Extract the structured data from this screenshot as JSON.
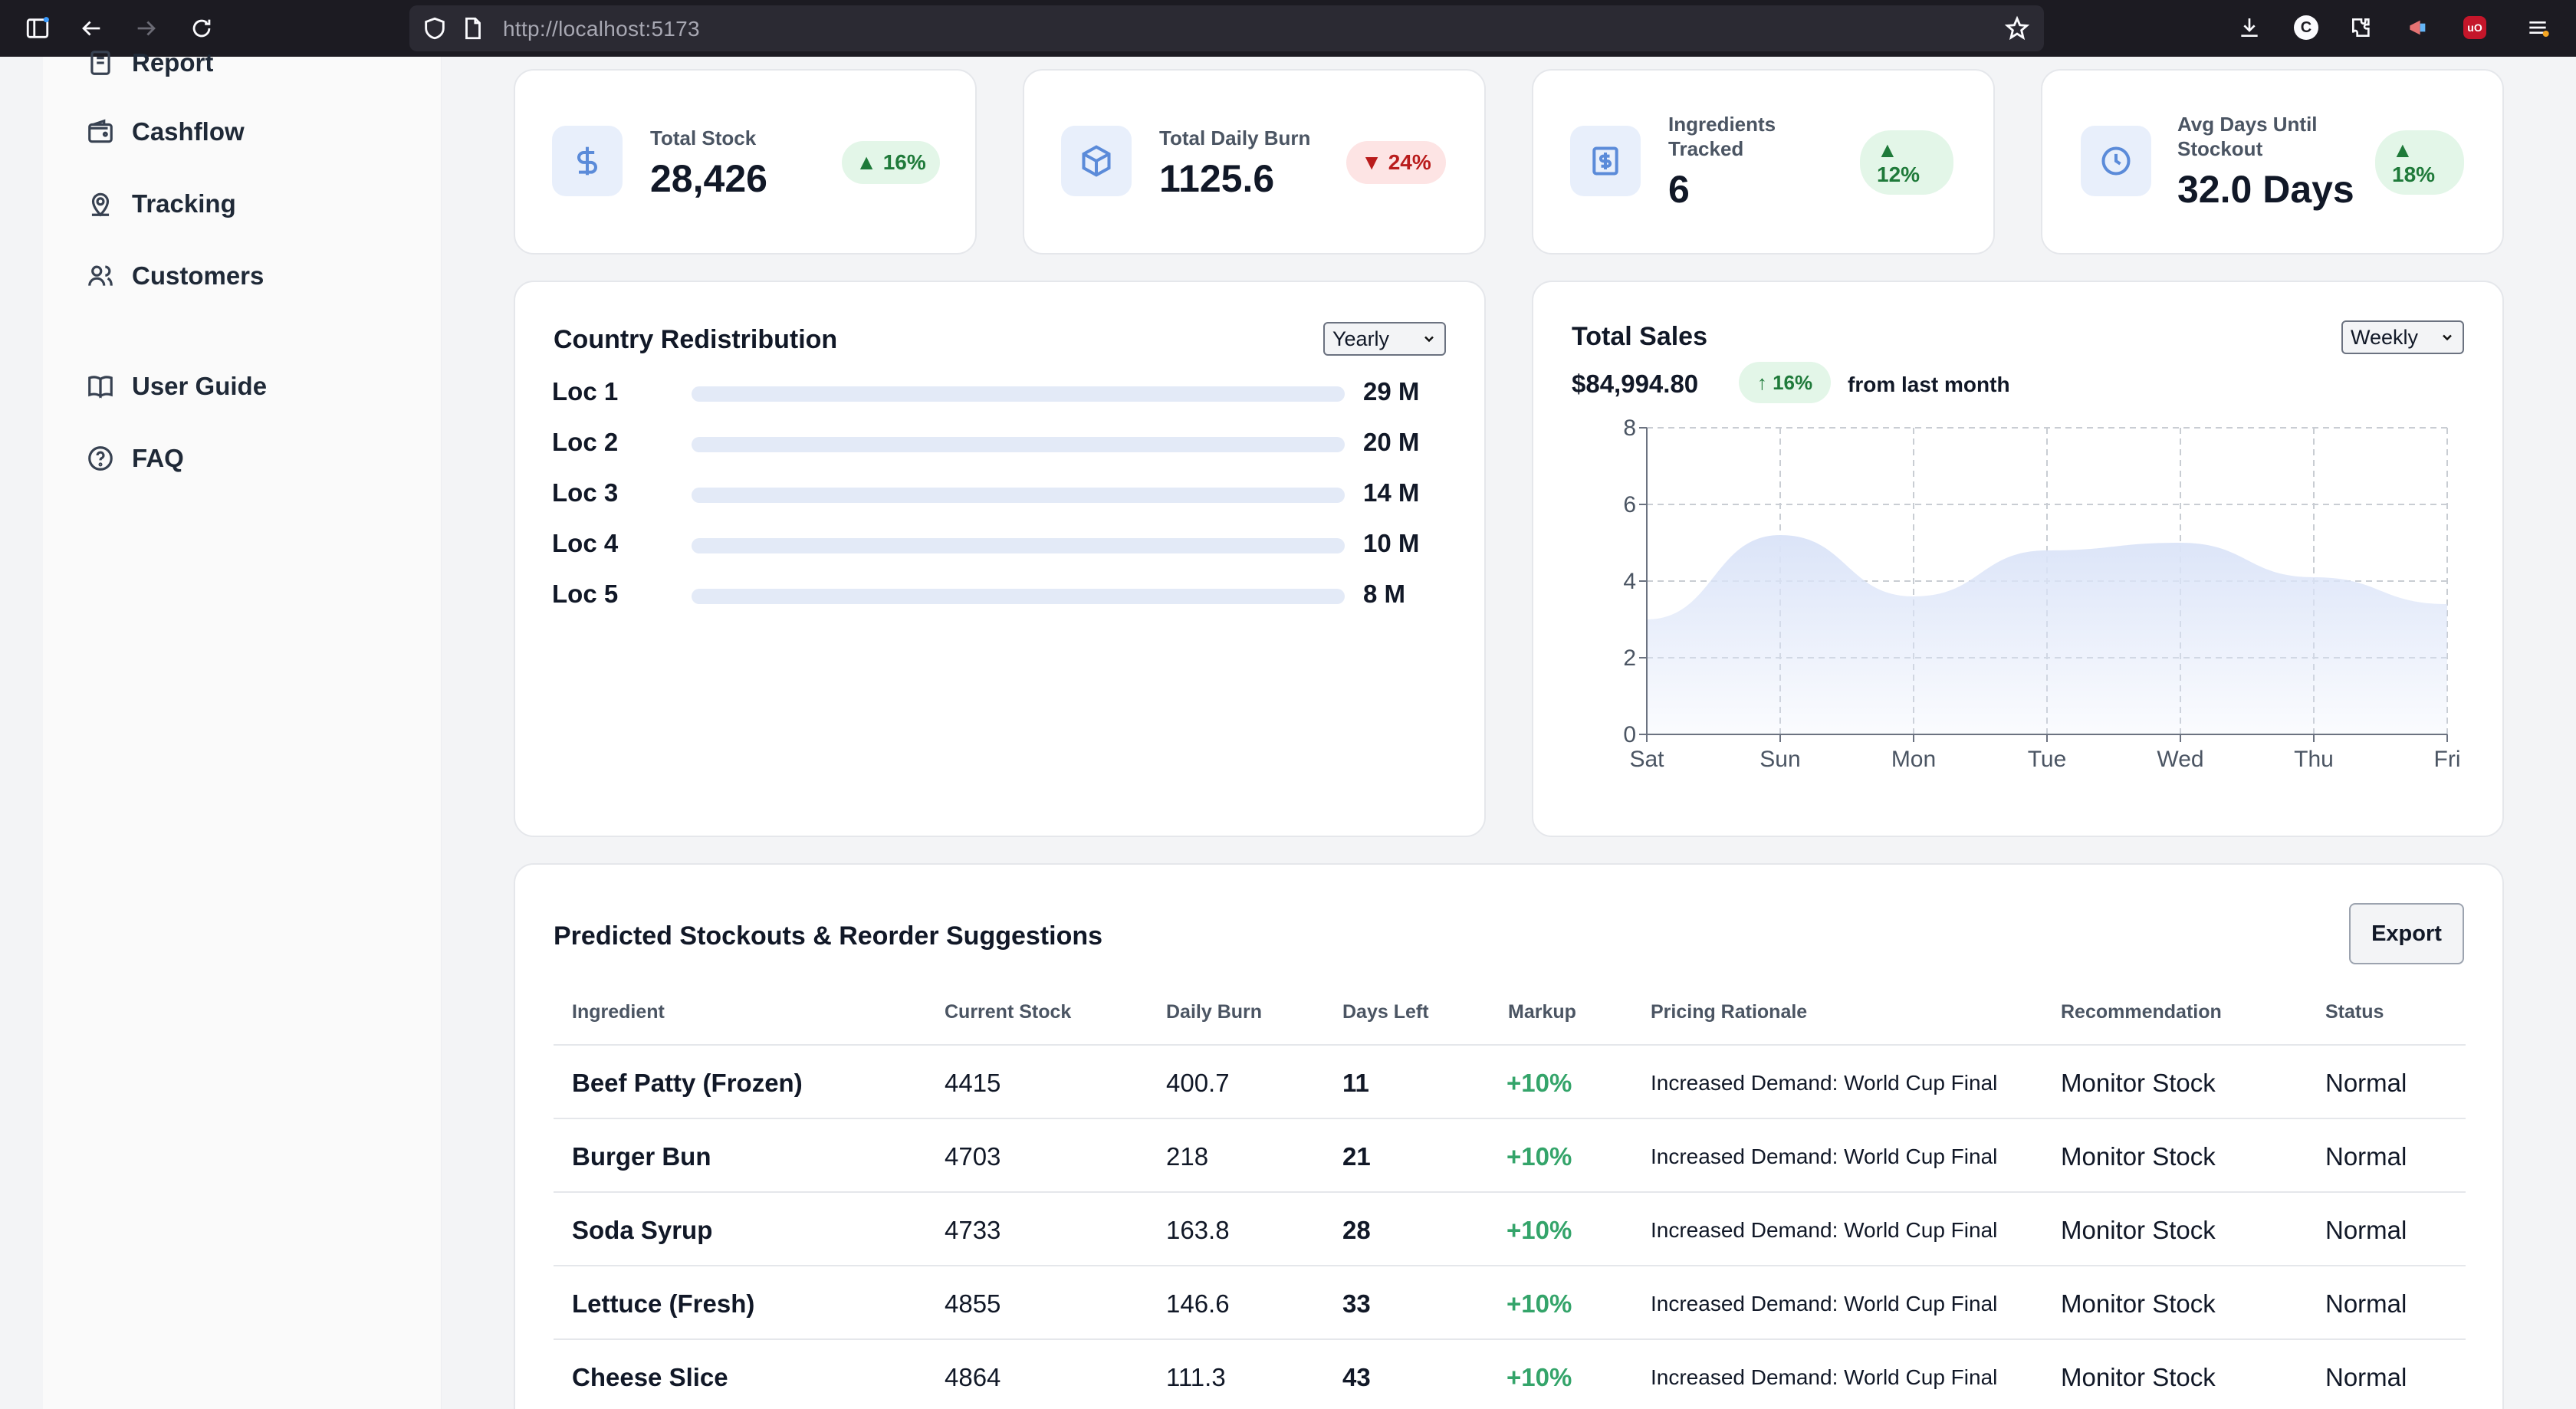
{
  "browser": {
    "url_host": "http://localhost",
    "url_port": ":5173"
  },
  "sidebar": {
    "items": [
      {
        "label": "Report",
        "icon": "report-icon"
      },
      {
        "label": "Cashflow",
        "icon": "wallet-icon"
      },
      {
        "label": "Tracking",
        "icon": "location-pin-icon"
      },
      {
        "label": "Customers",
        "icon": "users-icon"
      },
      {
        "label": "User Guide",
        "icon": "book-icon"
      },
      {
        "label": "FAQ",
        "icon": "question-circle-icon"
      }
    ]
  },
  "stats": [
    {
      "label": "Total Stock",
      "value": "28,426",
      "change": "▲ 16%",
      "direction": "up",
      "icon": "dollar-icon"
    },
    {
      "label": "Total Daily Burn",
      "value": "1125.6",
      "change": "▼ 24%",
      "direction": "down",
      "icon": "box-icon"
    },
    {
      "label_line1": "Ingredients",
      "label_line2": "Tracked",
      "value": "6",
      "change_arrow": "▲",
      "change_value": "12%",
      "direction": "up",
      "icon": "receipt-icon"
    },
    {
      "label_line1": "Avg Days Until",
      "label_line2": "Stockout",
      "value": "32.0 Days",
      "change_arrow": "▲",
      "change_value": "18%",
      "direction": "up",
      "icon": "clock-icon"
    }
  ],
  "country_redistribution": {
    "title": "Country Redistribution",
    "period": "Yearly",
    "rows": [
      {
        "name": "Loc 1",
        "value": "29 M"
      },
      {
        "name": "Loc 2",
        "value": "20 M"
      },
      {
        "name": "Loc 3",
        "value": "14 M"
      },
      {
        "name": "Loc 4",
        "value": "10 M"
      },
      {
        "name": "Loc 5",
        "value": "8 M"
      }
    ]
  },
  "total_sales": {
    "title": "Total Sales",
    "period": "Weekly",
    "amount": "$84,994.80",
    "change": "↑ 16%",
    "change_note": "from last month"
  },
  "chart_data": {
    "type": "area",
    "x": [
      "Sat",
      "Sun",
      "Mon",
      "Tue",
      "Wed",
      "Thu",
      "Fri"
    ],
    "series": [
      {
        "values": [
          3.0,
          5.2,
          3.6,
          4.8,
          5.0,
          4.1,
          3.4
        ]
      }
    ],
    "ylim": [
      0,
      8
    ],
    "yticks": [
      "0",
      "2",
      "4",
      "6",
      "8"
    ],
    "grid": true,
    "fill_color": "#dbe4f8"
  },
  "stockouts": {
    "title": "Predicted Stockouts & Reorder Suggestions",
    "export_label": "Export",
    "columns": [
      "Ingredient",
      "Current Stock",
      "Daily Burn",
      "Days Left",
      "Markup",
      "Pricing Rationale",
      "Recommendation",
      "Status"
    ],
    "rows": [
      {
        "ingredient": "Beef Patty (Frozen)",
        "stock": "4415",
        "burn": "400.7",
        "days": "11",
        "markup": "+10%",
        "rationale": "Increased Demand: World Cup Final",
        "recommendation": "Monitor Stock",
        "status": "Normal"
      },
      {
        "ingredient": "Burger Bun",
        "stock": "4703",
        "burn": "218",
        "days": "21",
        "markup": "+10%",
        "rationale": "Increased Demand: World Cup Final",
        "recommendation": "Monitor Stock",
        "status": "Normal"
      },
      {
        "ingredient": "Soda Syrup",
        "stock": "4733",
        "burn": "163.8",
        "days": "28",
        "markup": "+10%",
        "rationale": "Increased Demand: World Cup Final",
        "recommendation": "Monitor Stock",
        "status": "Normal"
      },
      {
        "ingredient": "Lettuce (Fresh)",
        "stock": "4855",
        "burn": "146.6",
        "days": "33",
        "markup": "+10%",
        "rationale": "Increased Demand: World Cup Final",
        "recommendation": "Monitor Stock",
        "status": "Normal"
      },
      {
        "ingredient": "Cheese Slice",
        "stock": "4864",
        "burn": "111.3",
        "days": "43",
        "markup": "+10%",
        "rationale": "Increased Demand: World Cup Final",
        "recommendation": "Monitor Stock",
        "status": "Normal"
      }
    ]
  }
}
